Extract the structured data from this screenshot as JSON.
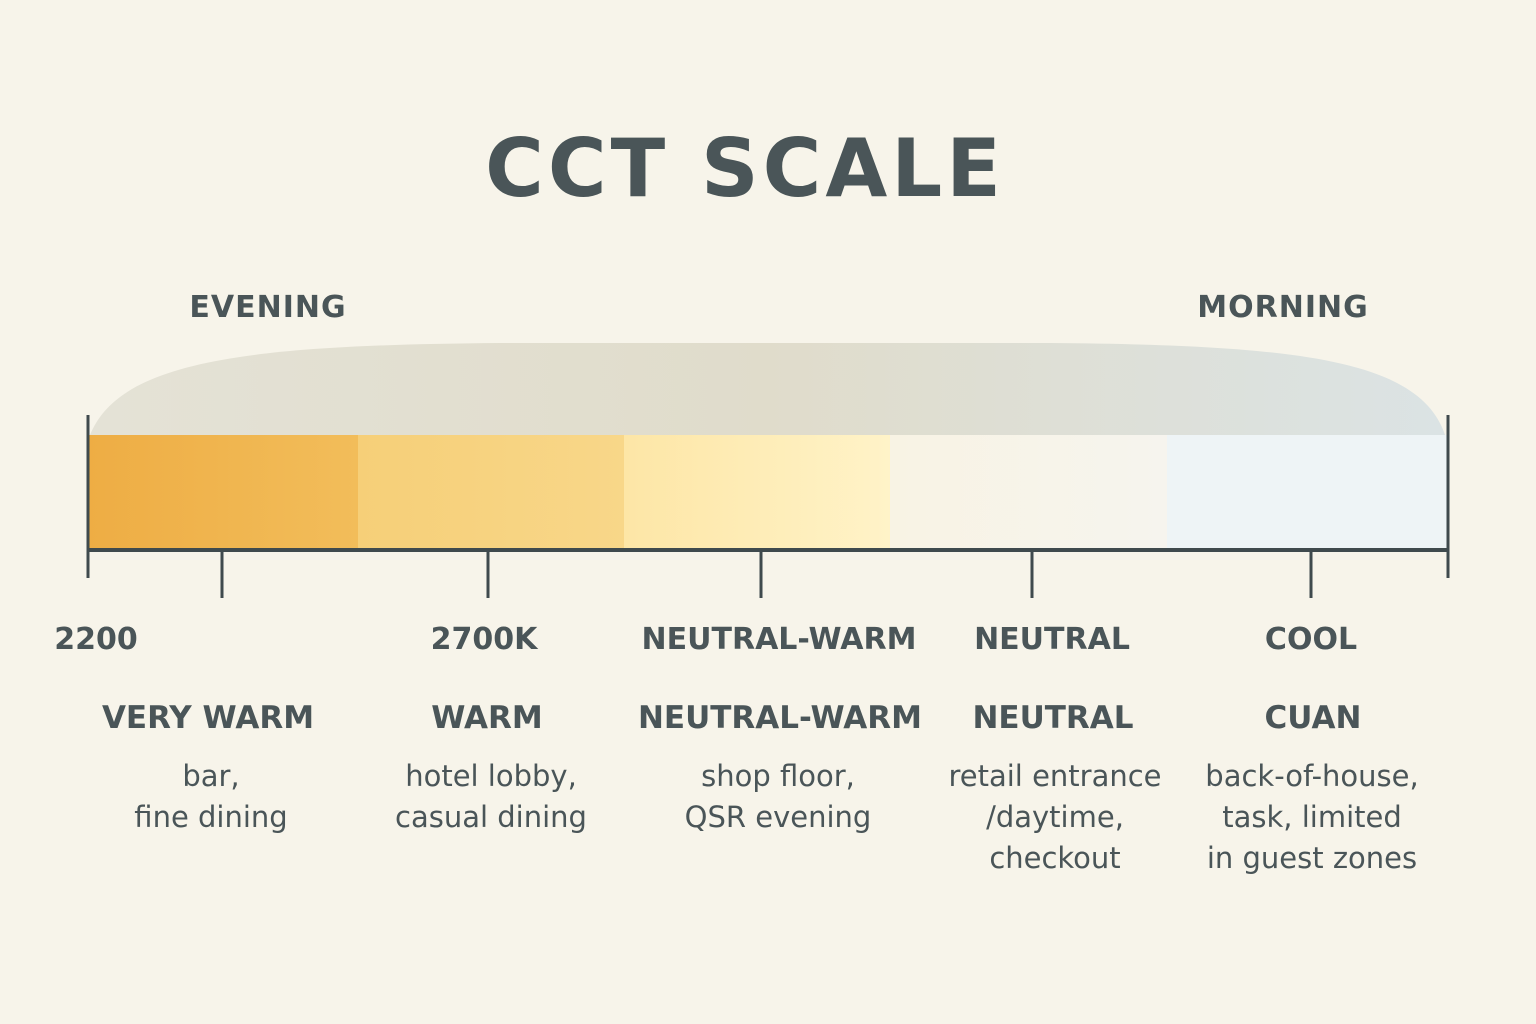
{
  "title": "CCT SCALE",
  "periods": {
    "left": "EVENING",
    "right": "MORNING"
  },
  "colors": {
    "text": "#4a5558",
    "background": "#f7f4ea",
    "segments": [
      [
        "#eead44",
        "#f2bd5a"
      ],
      [
        "#f6cf78",
        "#f8d789"
      ],
      [
        "#fde6a6",
        "#fff3c8"
      ],
      [
        "#f8f3e4",
        "#f6f4ee"
      ],
      [
        "#eef4f6",
        "#eef4f6"
      ]
    ]
  },
  "tick_labels": [
    "2200",
    "2700K",
    "NEUTRAL-WARM",
    "NEUTRAL",
    "COOL"
  ],
  "categories": [
    {
      "name": "VERY WARM",
      "desc": [
        "bar,",
        "fine dining"
      ]
    },
    {
      "name": "WARM",
      "desc": [
        "hotel lobby,",
        "casual dining"
      ]
    },
    {
      "name": "NEUTRAL-WARM",
      "desc": [
        "shop floor,",
        "QSR evening"
      ]
    },
    {
      "name": "NEUTRAL",
      "desc": [
        "retail entrance",
        "/daytime,",
        "checkout"
      ]
    },
    {
      "name": "CUAN",
      "desc": [
        "back-of-house,",
        "task, limited",
        "in guest zones"
      ]
    }
  ]
}
